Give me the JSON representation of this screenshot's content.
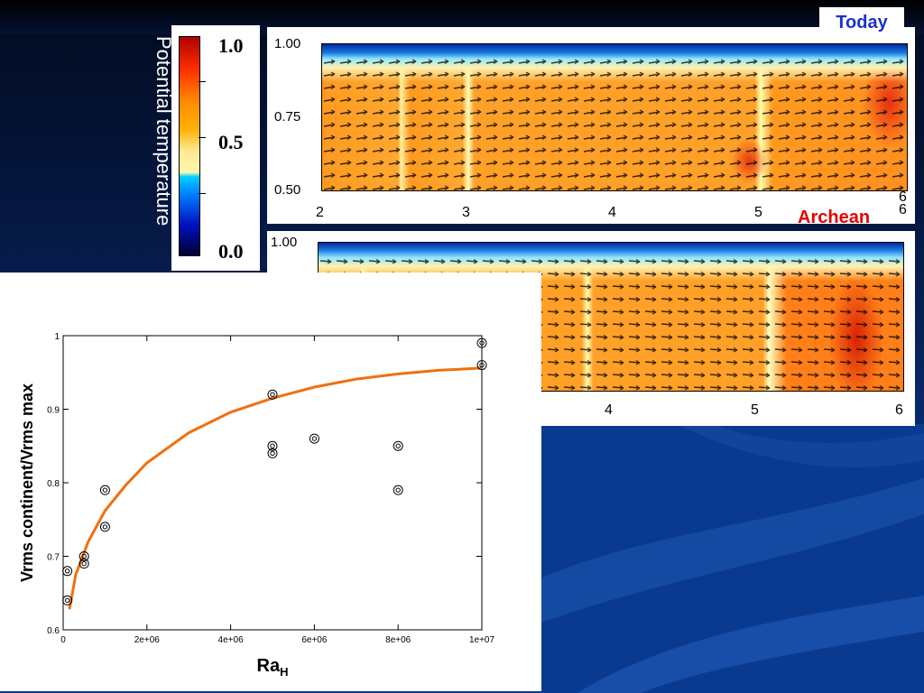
{
  "labels": {
    "colorbar_title": "Potential temperature",
    "today": "Today",
    "archean": "Archean"
  },
  "colorbar": {
    "ticks": [
      "1.0",
      "0.5",
      "0.0"
    ],
    "colors": [
      "#ff0000",
      "#ffaa00",
      "#ffffaa",
      "#00ccff",
      "#0000cc",
      "#000044"
    ]
  },
  "today_panel": {
    "yticks": [
      "1.00",
      "0.75",
      "0.50"
    ],
    "xticks": [
      "2",
      "3",
      "4",
      "5",
      "6"
    ]
  },
  "archean_panel": {
    "yticks": [
      "1.00"
    ],
    "xticks": [
      "4",
      "5",
      "6"
    ],
    "corner_tick": "6"
  },
  "chart_data": {
    "type": "scatter",
    "xlabel": "Ra",
    "xlabel_sub": "H",
    "ylabel": "Vrms continent/Vrms max",
    "xlim": [
      0,
      10000000
    ],
    "ylim": [
      0.6,
      1.0
    ],
    "xticks": [
      "0",
      "2e+06",
      "4e+06",
      "6e+06",
      "8e+06",
      "1e+07"
    ],
    "yticks": [
      "0.6",
      "0.7",
      "0.8",
      "0.9",
      "1"
    ],
    "points": [
      {
        "x": 100000,
        "y": 0.68
      },
      {
        "x": 100000,
        "y": 0.64
      },
      {
        "x": 500000,
        "y": 0.7
      },
      {
        "x": 500000,
        "y": 0.69
      },
      {
        "x": 1000000,
        "y": 0.79
      },
      {
        "x": 1000000,
        "y": 0.74
      },
      {
        "x": 5000000,
        "y": 0.92
      },
      {
        "x": 5000000,
        "y": 0.85
      },
      {
        "x": 5000000,
        "y": 0.84
      },
      {
        "x": 6000000,
        "y": 0.86
      },
      {
        "x": 8000000,
        "y": 0.85
      },
      {
        "x": 8000000,
        "y": 0.79
      },
      {
        "x": 10000000,
        "y": 0.99
      },
      {
        "x": 10000000,
        "y": 0.96
      }
    ],
    "fit_curve": [
      {
        "x": 150000,
        "y": 0.628
      },
      {
        "x": 300000,
        "y": 0.675
      },
      {
        "x": 600000,
        "y": 0.72
      },
      {
        "x": 1000000,
        "y": 0.762
      },
      {
        "x": 1500000,
        "y": 0.797
      },
      {
        "x": 2000000,
        "y": 0.827
      },
      {
        "x": 3000000,
        "y": 0.868
      },
      {
        "x": 4000000,
        "y": 0.896
      },
      {
        "x": 5000000,
        "y": 0.915
      },
      {
        "x": 6000000,
        "y": 0.93
      },
      {
        "x": 7000000,
        "y": 0.941
      },
      {
        "x": 8000000,
        "y": 0.948
      },
      {
        "x": 9000000,
        "y": 0.953
      },
      {
        "x": 10000000,
        "y": 0.956
      }
    ],
    "fit_color": "#f07010",
    "marker_color": "#000000"
  }
}
